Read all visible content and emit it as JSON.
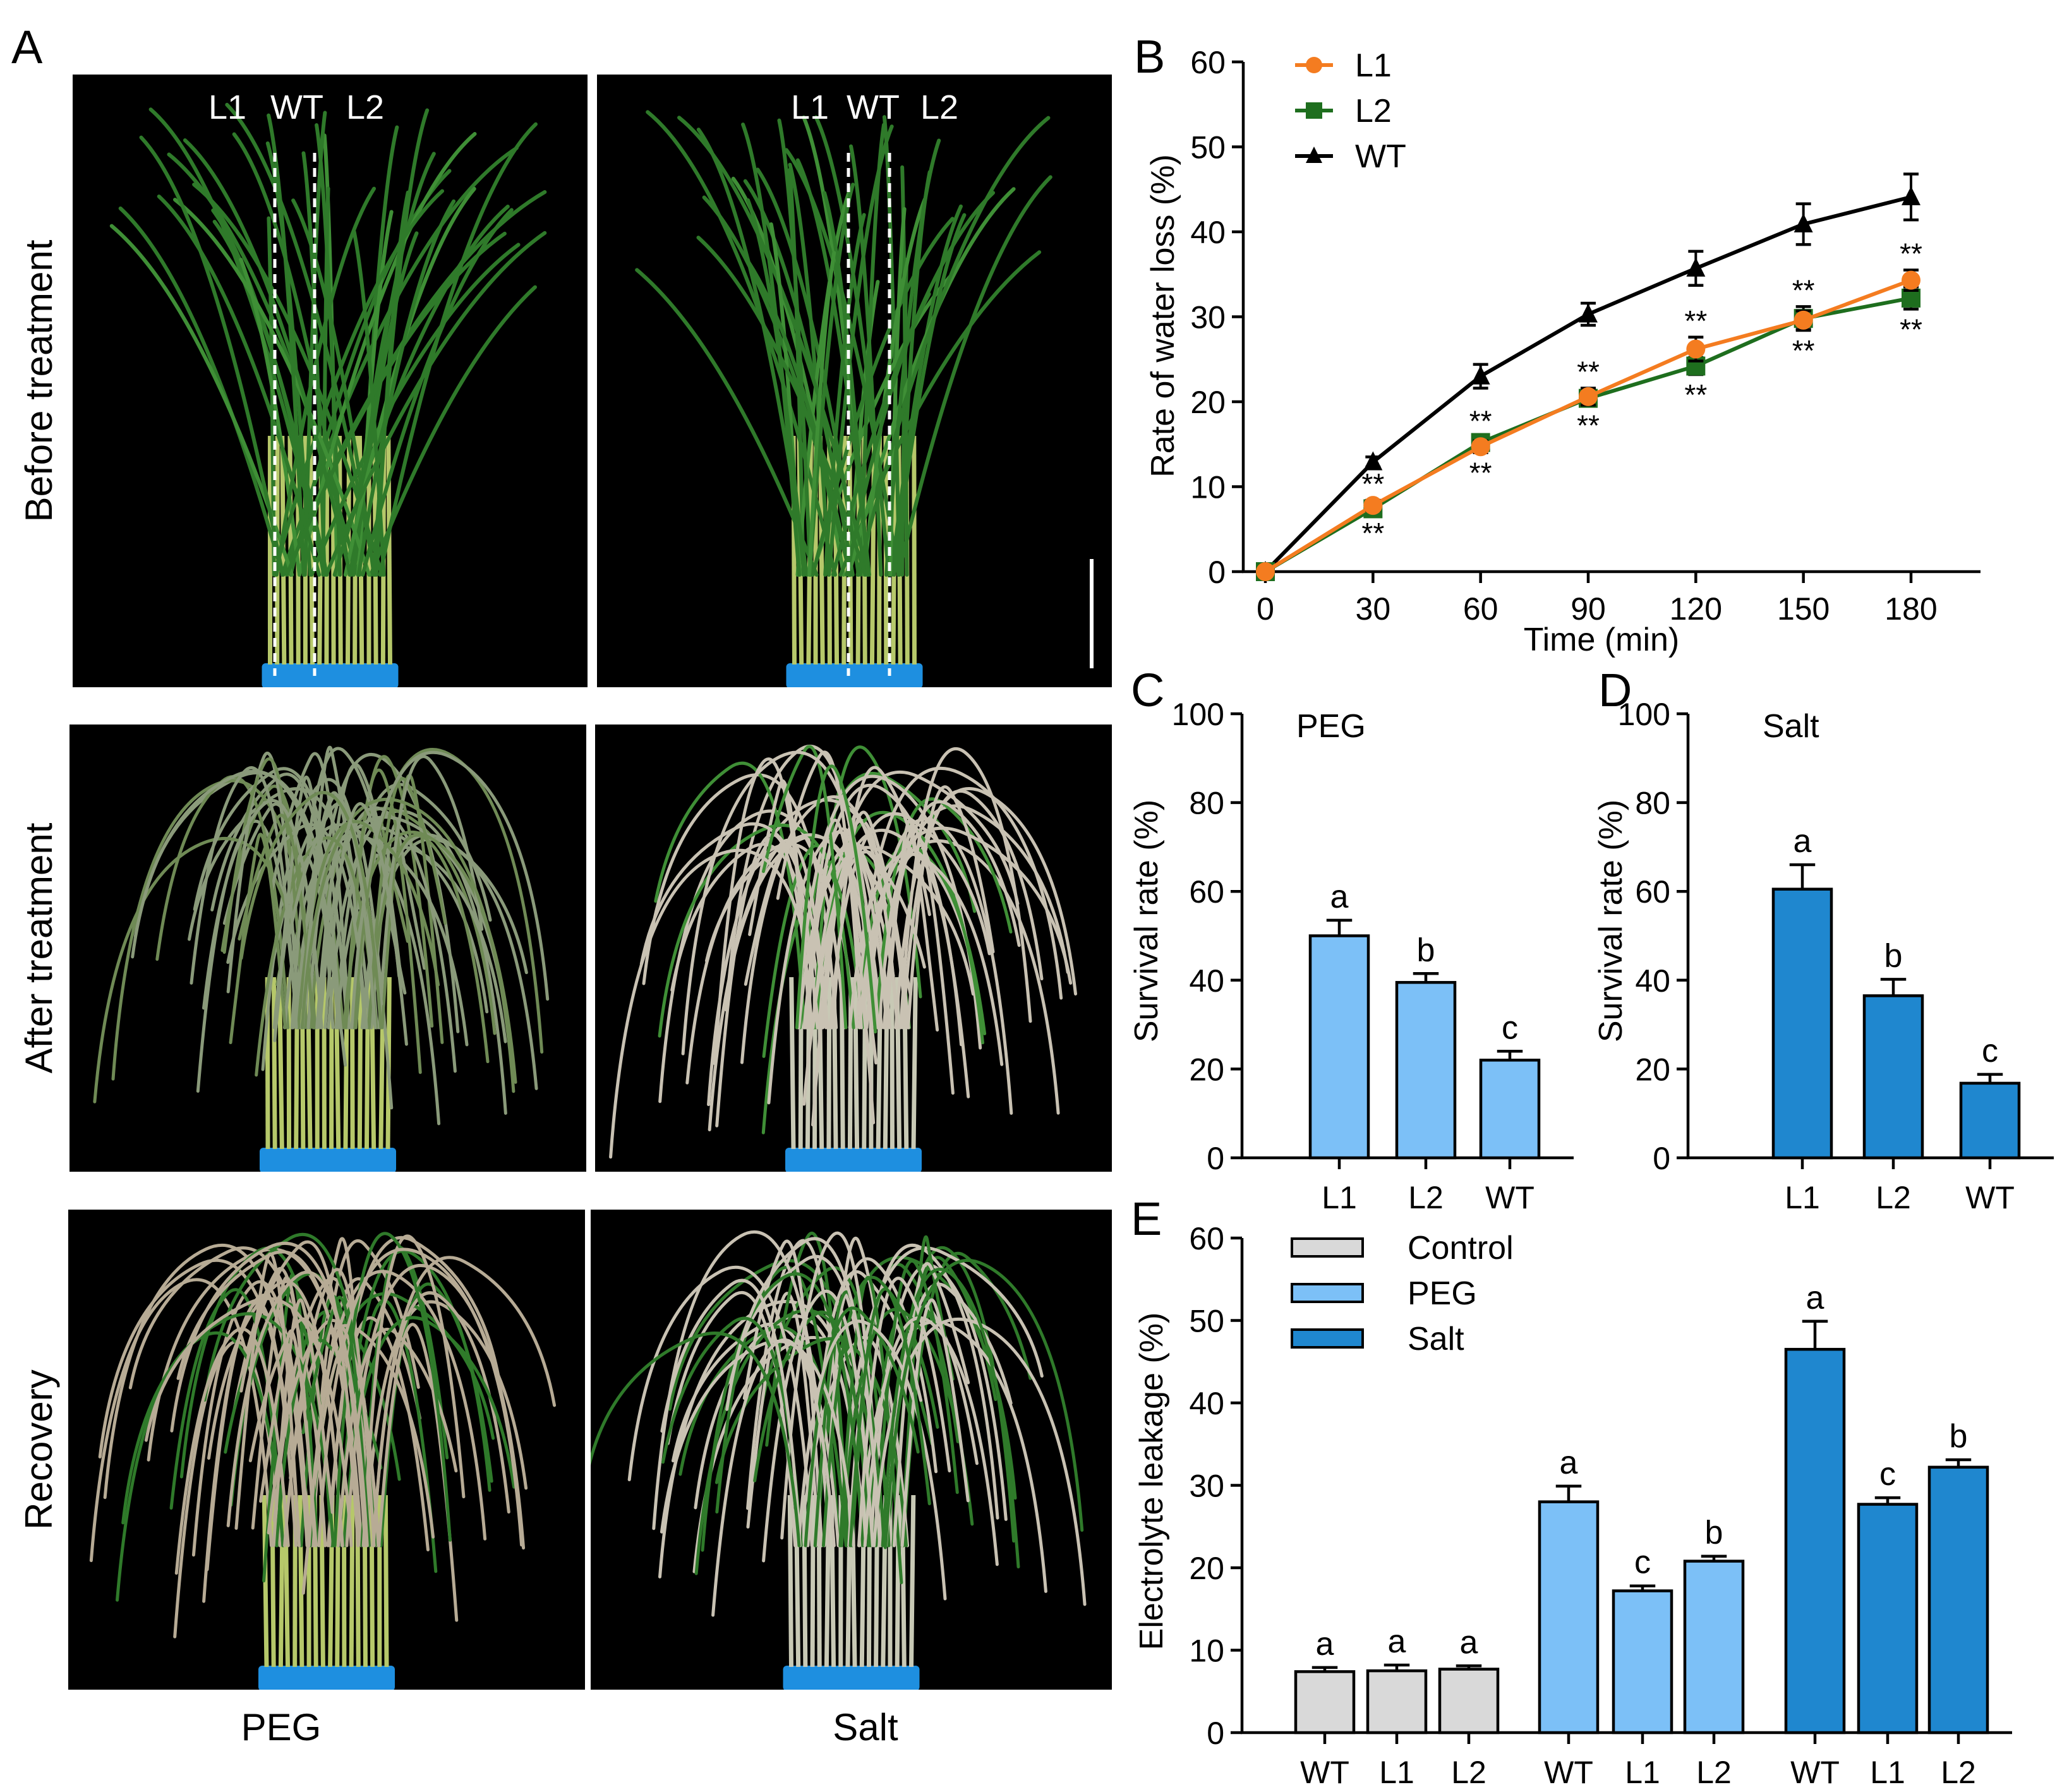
{
  "panel_letters": {
    "a": "A",
    "b": "B",
    "c": "C",
    "d": "D",
    "e": "E"
  },
  "photos": {
    "row_labels": [
      "Before treatment",
      "After treatment",
      "Recovery"
    ],
    "column_labels": [
      "PEG",
      "Salt"
    ],
    "plant_labels": [
      "L1",
      "WT",
      "L2"
    ],
    "colors": {
      "background": "#000000",
      "leaf": "#2f7a2a",
      "dry_leaf": "#c9c2b3",
      "stem": "#b6c86a",
      "pot": "#1e8fe0"
    }
  },
  "chart_data": [
    {
      "id": "B",
      "type": "line",
      "xlabel": "Time (min)",
      "ylabel": "Rate of water loss (%)",
      "xlim": [
        0,
        180
      ],
      "ylim": [
        0,
        60
      ],
      "xticks": [
        0,
        30,
        60,
        90,
        120,
        150,
        180
      ],
      "yticks": [
        0,
        10,
        20,
        30,
        40,
        50,
        60
      ],
      "x": [
        0,
        30,
        60,
        90,
        120,
        150,
        180
      ],
      "legend": "top-left",
      "significance_label": "**",
      "series": [
        {
          "name": "L1",
          "color": "#f47c20",
          "marker": "circle",
          "values": [
            0,
            7.8,
            14.7,
            20.6,
            26.2,
            29.6,
            34.3
          ],
          "errors": [
            0,
            0.6,
            0.7,
            1.0,
            1.4,
            1.1,
            1.2
          ]
        },
        {
          "name": "L2",
          "color": "#1e6e1e",
          "marker": "square",
          "values": [
            0,
            7.4,
            15.2,
            20.4,
            24.2,
            29.8,
            32.2
          ],
          "errors": [
            0,
            0.5,
            0.6,
            0.8,
            1.0,
            1.4,
            1.3
          ]
        },
        {
          "name": "WT",
          "color": "#000000",
          "marker": "triangle",
          "values": [
            0,
            12.9,
            23.0,
            30.3,
            35.7,
            40.9,
            44.1
          ],
          "errors": [
            0,
            0.6,
            1.4,
            1.3,
            2.0,
            2.4,
            2.7
          ]
        }
      ],
      "annotations": [
        {
          "x": 30,
          "above": "**",
          "below": "**"
        },
        {
          "x": 60,
          "above": "**",
          "below": "**"
        },
        {
          "x": 90,
          "above": "**",
          "below": "**"
        },
        {
          "x": 120,
          "above": "**",
          "below": "**"
        },
        {
          "x": 150,
          "above": "**",
          "below": "**"
        },
        {
          "x": 180,
          "above": "**",
          "below": "**"
        }
      ]
    },
    {
      "id": "C",
      "type": "bar",
      "title": "PEG",
      "ylabel": "Survival rate (%)",
      "ylim": [
        0,
        100
      ],
      "yticks": [
        0,
        20,
        40,
        60,
        80,
        100
      ],
      "categories": [
        "L1",
        "L2",
        "WT"
      ],
      "values": [
        50,
        39.5,
        22
      ],
      "errors": [
        3.5,
        2.0,
        2.0
      ],
      "letters": [
        "a",
        "b",
        "c"
      ],
      "color": "#7cc0f7"
    },
    {
      "id": "D",
      "type": "bar",
      "title": "Salt",
      "ylabel": "Survival rate (%)",
      "ylim": [
        0,
        100
      ],
      "yticks": [
        0,
        20,
        40,
        60,
        80,
        100
      ],
      "categories": [
        "L1",
        "L2",
        "WT"
      ],
      "values": [
        60.5,
        36.5,
        16.8
      ],
      "errors": [
        5.5,
        3.7,
        2.0
      ],
      "letters": [
        "a",
        "b",
        "c"
      ],
      "color": "#1f87cf"
    },
    {
      "id": "E",
      "type": "bar",
      "ylabel": "Electrolyte leakage (%)",
      "ylim": [
        0,
        60
      ],
      "yticks": [
        0,
        10,
        20,
        30,
        40,
        50,
        60
      ],
      "legend": "top-left",
      "groups": [
        {
          "name": "Control",
          "color": "#d9d9d9",
          "categories": [
            "WT",
            "L1",
            "L2"
          ],
          "values": [
            7.4,
            7.5,
            7.7
          ],
          "errors": [
            0.5,
            0.7,
            0.4
          ],
          "letters": [
            "a",
            "a",
            "a"
          ]
        },
        {
          "name": "PEG",
          "color": "#7cc0f7",
          "categories": [
            "WT",
            "L1",
            "L2"
          ],
          "values": [
            28,
            17.2,
            20.8
          ],
          "errors": [
            1.9,
            0.6,
            0.6
          ],
          "letters": [
            "a",
            "c",
            "b"
          ]
        },
        {
          "name": "Salt",
          "color": "#1f87cf",
          "categories": [
            "WT",
            "L1",
            "L2"
          ],
          "values": [
            46.5,
            27.7,
            32.2
          ],
          "errors": [
            3.4,
            0.8,
            0.9
          ],
          "letters": [
            "a",
            "c",
            "b"
          ]
        }
      ]
    }
  ]
}
